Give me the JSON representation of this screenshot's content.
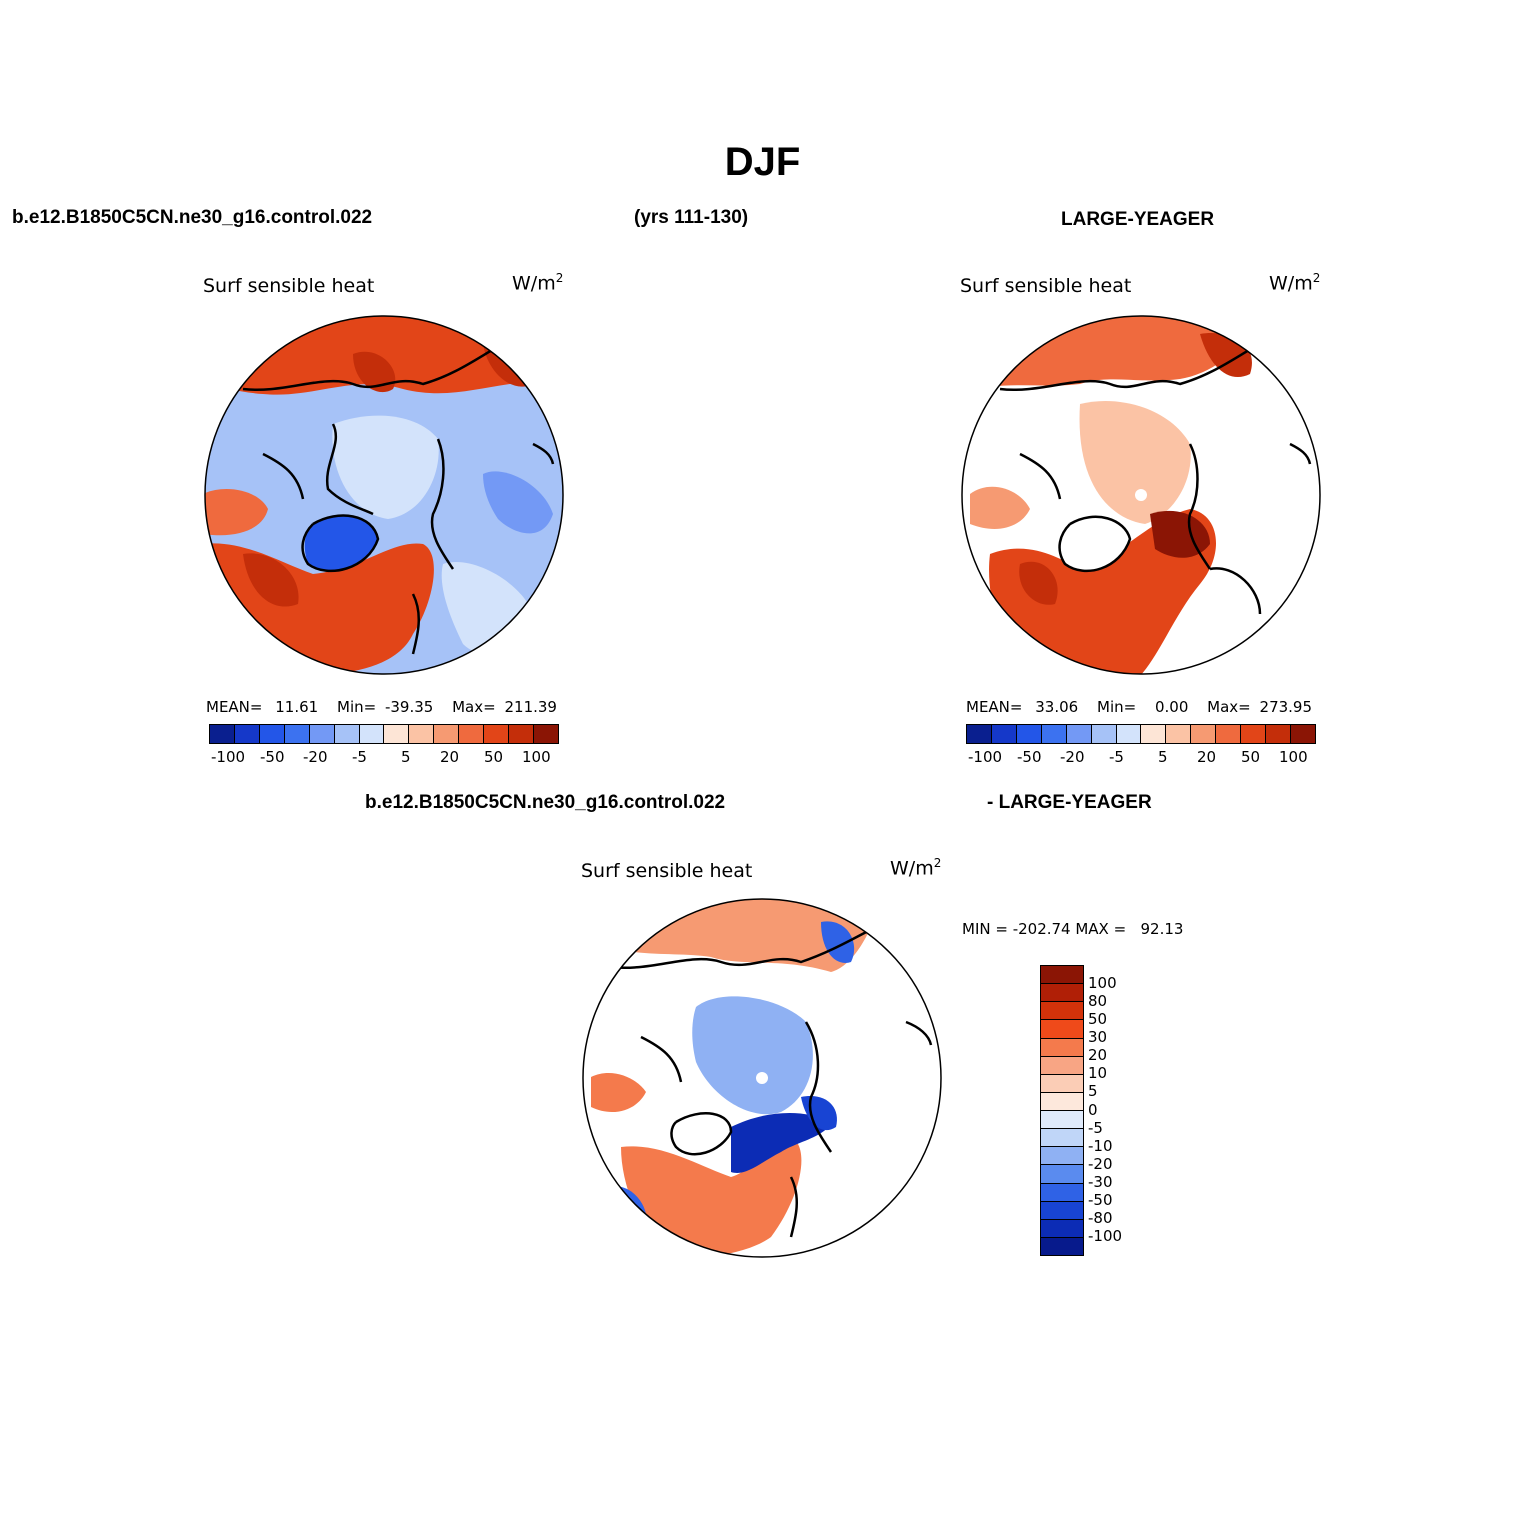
{
  "header": {
    "title": "DJF",
    "case_name": "b.e12.B1850C5CN.ne30_g16.control.022",
    "years": "(yrs 111-130)",
    "obs_name": "LARGE-YEAGER"
  },
  "panels": [
    {
      "variable": "Surf sensible heat",
      "units_base": "W/m",
      "units_exp": "2",
      "stats_mean_label": "MEAN=",
      "stats_mean": "11.61",
      "stats_min_label": "Min=",
      "stats_min": "-39.35",
      "stats_max_label": "Max=",
      "stats_max": "211.39"
    },
    {
      "variable": "Surf sensible heat",
      "units_base": "W/m",
      "units_exp": "2",
      "stats_mean_label": "MEAN=",
      "stats_mean": "33.06",
      "stats_min_label": "Min=",
      "stats_min": "0.00",
      "stats_max_label": "Max=",
      "stats_max": "273.95"
    }
  ],
  "diff_panel": {
    "case_name": "b.e12.B1850C5CN.ne30_g16.control.022",
    "obs_name": "- LARGE-YEAGER",
    "variable": "Surf sensible heat",
    "units_base": "W/m",
    "units_exp": "2",
    "stats_text": "MIN = -202.74 MAX =   92.13"
  },
  "colorbar_h": {
    "colors": [
      "#0a1f8f",
      "#1538c9",
      "#2356e8",
      "#3c72f0",
      "#7399f5",
      "#a6c2f7",
      "#d3e3fb",
      "#fde5d6",
      "#fbc3a5",
      "#f69a72",
      "#ef6a3e",
      "#e24518",
      "#c42e0a",
      "#8b1505"
    ],
    "tick_labels": [
      "-100",
      "-50",
      "-20",
      "-5",
      "5",
      "20",
      "50",
      "100"
    ]
  },
  "colorbar_v": {
    "colors": [
      "#8b1505",
      "#b01f06",
      "#d3320a",
      "#ef4a1a",
      "#f47a4c",
      "#f8a584",
      "#fbcdb6",
      "#fde8dc",
      "#dfeafb",
      "#c0d6f8",
      "#8fb1f3",
      "#5a8bef",
      "#2f62e6",
      "#1844d3",
      "#0c2cb5",
      "#071a8c"
    ],
    "tick_labels": [
      "100",
      "80",
      "50",
      "30",
      "20",
      "10",
      "5",
      "0",
      "-5",
      "-10",
      "-20",
      "-30",
      "-50",
      "-80",
      "-100"
    ]
  },
  "map_legend": {
    "land": "#ffffff",
    "coast": "#000000"
  }
}
